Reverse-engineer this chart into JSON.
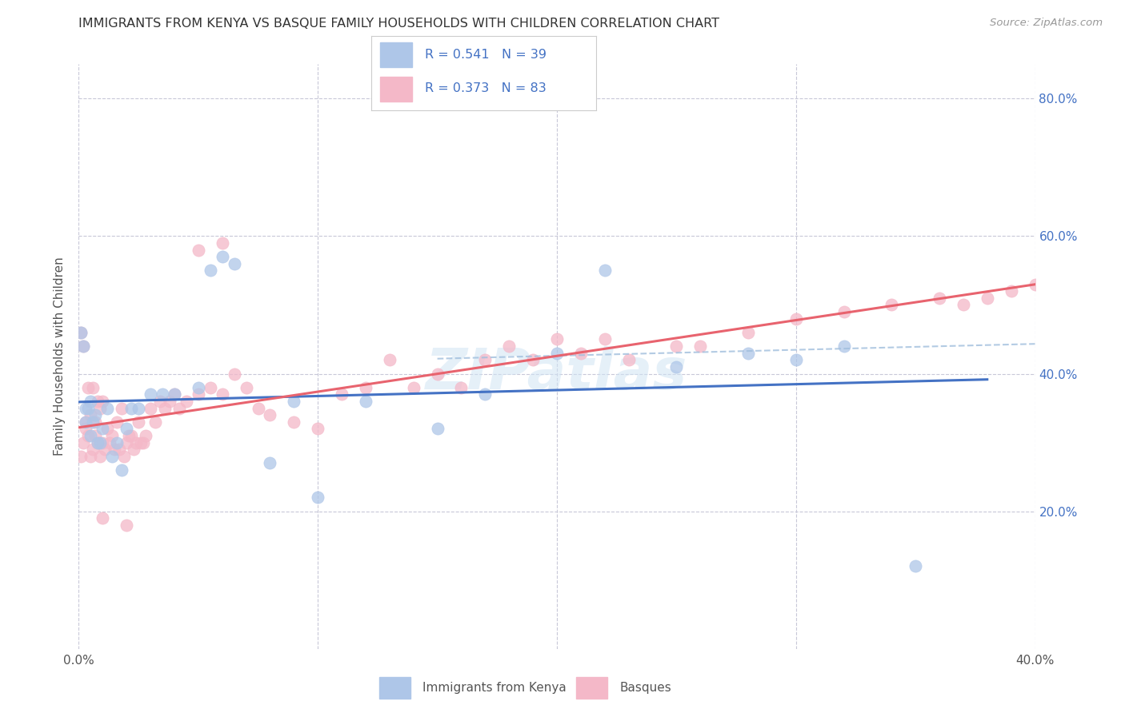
{
  "title": "IMMIGRANTS FROM KENYA VS BASQUE FAMILY HOUSEHOLDS WITH CHILDREN CORRELATION CHART",
  "source": "Source: ZipAtlas.com",
  "ylabel": "Family Households with Children",
  "legend_label_kenya": "Immigrants from Kenya",
  "legend_label_basque": "Basques",
  "r_kenya": 0.541,
  "n_kenya": 39,
  "r_basque": 0.373,
  "n_basque": 83,
  "xlim": [
    0.0,
    0.4
  ],
  "ylim": [
    0.0,
    0.85
  ],
  "x_ticks": [
    0.0,
    0.1,
    0.2,
    0.3,
    0.4
  ],
  "x_tick_labels": [
    "0.0%",
    "",
    "",
    "",
    "40.0%"
  ],
  "y_ticks": [
    0.2,
    0.4,
    0.6,
    0.8
  ],
  "y_tick_labels_right": [
    "20.0%",
    "40.0%",
    "60.0%",
    "80.0%"
  ],
  "color_kenya": "#aec6e8",
  "color_basque": "#f4b8c8",
  "line_color_kenya": "#4472c4",
  "line_color_basque": "#e8636e",
  "dash_color_kenya": "#a0bedd",
  "watermark": "ZIPatlas",
  "bg_color": "#ffffff",
  "grid_color": "#c8c8d8",
  "kenya_x": [
    0.001,
    0.002,
    0.003,
    0.003,
    0.004,
    0.005,
    0.005,
    0.006,
    0.007,
    0.008,
    0.009,
    0.01,
    0.012,
    0.014,
    0.016,
    0.018,
    0.02,
    0.022,
    0.025,
    0.03,
    0.035,
    0.04,
    0.05,
    0.055,
    0.06,
    0.065,
    0.08,
    0.09,
    0.1,
    0.12,
    0.15,
    0.17,
    0.2,
    0.22,
    0.25,
    0.28,
    0.3,
    0.32,
    0.35
  ],
  "kenya_y": [
    0.46,
    0.44,
    0.33,
    0.35,
    0.35,
    0.36,
    0.31,
    0.33,
    0.34,
    0.3,
    0.3,
    0.32,
    0.35,
    0.28,
    0.3,
    0.26,
    0.32,
    0.35,
    0.35,
    0.37,
    0.37,
    0.37,
    0.38,
    0.55,
    0.57,
    0.56,
    0.27,
    0.36,
    0.22,
    0.36,
    0.32,
    0.37,
    0.43,
    0.55,
    0.41,
    0.43,
    0.42,
    0.44,
    0.12
  ],
  "basque_x": [
    0.001,
    0.001,
    0.002,
    0.002,
    0.003,
    0.003,
    0.004,
    0.004,
    0.005,
    0.005,
    0.006,
    0.006,
    0.007,
    0.007,
    0.008,
    0.008,
    0.009,
    0.009,
    0.01,
    0.01,
    0.011,
    0.012,
    0.013,
    0.014,
    0.015,
    0.016,
    0.017,
    0.018,
    0.019,
    0.02,
    0.021,
    0.022,
    0.023,
    0.024,
    0.025,
    0.026,
    0.027,
    0.028,
    0.03,
    0.032,
    0.034,
    0.036,
    0.038,
    0.04,
    0.042,
    0.045,
    0.05,
    0.055,
    0.06,
    0.065,
    0.07,
    0.075,
    0.08,
    0.09,
    0.1,
    0.11,
    0.12,
    0.13,
    0.14,
    0.15,
    0.16,
    0.17,
    0.18,
    0.19,
    0.2,
    0.21,
    0.22,
    0.23,
    0.25,
    0.26,
    0.28,
    0.3,
    0.32,
    0.34,
    0.36,
    0.37,
    0.38,
    0.39,
    0.4,
    0.01,
    0.02,
    0.05,
    0.06
  ],
  "basque_y": [
    0.28,
    0.46,
    0.3,
    0.44,
    0.32,
    0.33,
    0.31,
    0.38,
    0.28,
    0.34,
    0.29,
    0.38,
    0.31,
    0.33,
    0.3,
    0.36,
    0.28,
    0.35,
    0.3,
    0.36,
    0.29,
    0.32,
    0.3,
    0.31,
    0.29,
    0.33,
    0.29,
    0.35,
    0.28,
    0.3,
    0.31,
    0.31,
    0.29,
    0.3,
    0.33,
    0.3,
    0.3,
    0.31,
    0.35,
    0.33,
    0.36,
    0.35,
    0.36,
    0.37,
    0.35,
    0.36,
    0.37,
    0.38,
    0.37,
    0.4,
    0.38,
    0.35,
    0.34,
    0.33,
    0.32,
    0.37,
    0.38,
    0.42,
    0.38,
    0.4,
    0.38,
    0.42,
    0.44,
    0.42,
    0.45,
    0.43,
    0.45,
    0.42,
    0.44,
    0.44,
    0.46,
    0.48,
    0.49,
    0.5,
    0.51,
    0.5,
    0.51,
    0.52,
    0.53,
    0.19,
    0.18,
    0.58,
    0.59
  ]
}
